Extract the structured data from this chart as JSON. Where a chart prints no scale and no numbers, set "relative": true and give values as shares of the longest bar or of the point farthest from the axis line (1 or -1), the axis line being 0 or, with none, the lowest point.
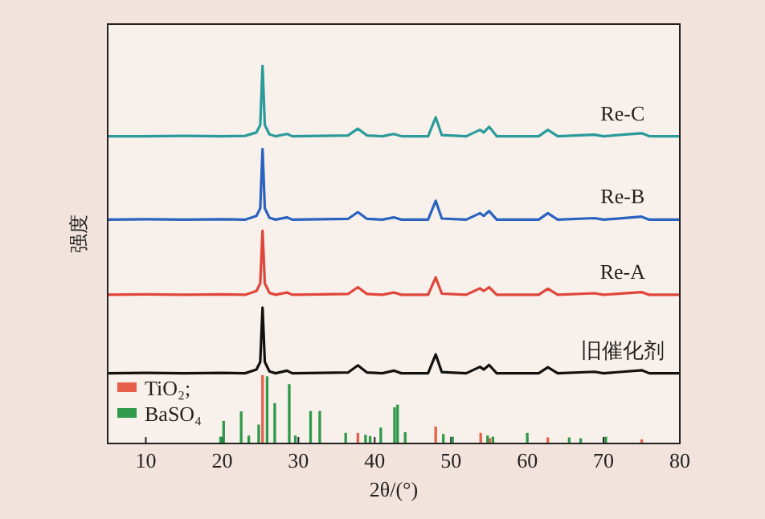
{
  "chart_data": {
    "type": "line",
    "xlabel": "2θ/(°)",
    "ylabel": "强度",
    "relative": true,
    "xlim": [
      5,
      80
    ],
    "xticks": [
      10,
      20,
      30,
      40,
      50,
      60,
      70,
      80
    ],
    "grid": false,
    "legend": "bottom left",
    "tick_labels": "x",
    "line_style": "solid",
    "series": [
      {
        "name": "Re-C",
        "color": "#2a9a9a",
        "x": [
          5,
          10,
          15,
          20,
          23,
          24.5,
          25.0,
          25.3,
          25.6,
          26.2,
          27,
          28.5,
          29.2,
          33,
          36.5,
          37.8,
          39,
          41,
          42.5,
          43.5,
          47,
          48.0,
          48.8,
          52,
          53.8,
          54.3,
          55.0,
          56,
          61.5,
          62.7,
          64,
          68.8,
          70,
          75,
          76,
          80
        ],
        "values": [
          0.814,
          0.814,
          0.815,
          0.814,
          0.815,
          0.824,
          0.844,
          1.0,
          0.844,
          0.819,
          0.814,
          0.82,
          0.814,
          0.815,
          0.816,
          0.834,
          0.816,
          0.814,
          0.82,
          0.814,
          0.814,
          0.864,
          0.817,
          0.814,
          0.831,
          0.824,
          0.839,
          0.814,
          0.814,
          0.831,
          0.814,
          0.818,
          0.814,
          0.822,
          0.814,
          0.814
        ]
      },
      {
        "name": "Re-B",
        "color": "#2a62c0",
        "x": [
          5,
          10,
          15,
          20,
          23,
          24.5,
          25.0,
          25.3,
          25.6,
          26.2,
          27,
          28.5,
          29.2,
          33,
          36.5,
          37.8,
          39,
          41,
          42.5,
          43.5,
          47,
          48.0,
          48.8,
          52,
          53.8,
          54.3,
          55.0,
          56,
          61.5,
          62.7,
          64,
          68.8,
          70,
          75,
          76,
          80
        ],
        "values": [
          0.593,
          0.594,
          0.593,
          0.594,
          0.593,
          0.603,
          0.623,
          0.78,
          0.623,
          0.598,
          0.593,
          0.599,
          0.593,
          0.594,
          0.595,
          0.613,
          0.595,
          0.593,
          0.599,
          0.593,
          0.593,
          0.643,
          0.596,
          0.593,
          0.61,
          0.603,
          0.616,
          0.593,
          0.593,
          0.61,
          0.593,
          0.597,
          0.593,
          0.601,
          0.593,
          0.593
        ]
      },
      {
        "name": "Re-A",
        "color": "#e0453a",
        "x": [
          5,
          10,
          15,
          20,
          23,
          24.5,
          25.0,
          25.3,
          25.6,
          26.2,
          27,
          28.5,
          29.2,
          33,
          36.5,
          37.8,
          39,
          41,
          42.5,
          43.5,
          47,
          48.0,
          48.8,
          52,
          53.8,
          54.3,
          55.0,
          56,
          61.5,
          62.7,
          64,
          68.8,
          70,
          75,
          76,
          80
        ],
        "values": [
          0.394,
          0.395,
          0.394,
          0.395,
          0.394,
          0.404,
          0.424,
          0.564,
          0.424,
          0.399,
          0.394,
          0.4,
          0.394,
          0.395,
          0.396,
          0.414,
          0.396,
          0.394,
          0.4,
          0.394,
          0.394,
          0.44,
          0.397,
          0.394,
          0.411,
          0.404,
          0.414,
          0.394,
          0.394,
          0.41,
          0.394,
          0.398,
          0.394,
          0.401,
          0.394,
          0.394
        ]
      },
      {
        "name": "旧催化剂",
        "color": "#111111",
        "x": [
          5,
          10,
          15,
          20,
          23,
          24.5,
          25.0,
          25.3,
          25.6,
          26.2,
          27,
          28.5,
          29.2,
          33,
          36.5,
          37.8,
          39,
          41,
          42.5,
          43.5,
          47,
          48.0,
          48.8,
          52,
          53.8,
          54.3,
          55.0,
          56,
          61.5,
          62.7,
          64,
          68.8,
          70,
          75,
          76,
          80
        ],
        "values": [
          0.186,
          0.187,
          0.186,
          0.187,
          0.186,
          0.196,
          0.216,
          0.36,
          0.216,
          0.191,
          0.186,
          0.193,
          0.186,
          0.187,
          0.188,
          0.207,
          0.188,
          0.186,
          0.193,
          0.186,
          0.186,
          0.236,
          0.189,
          0.186,
          0.203,
          0.196,
          0.208,
          0.186,
          0.186,
          0.202,
          0.186,
          0.19,
          0.186,
          0.194,
          0.186,
          0.186
        ]
      },
      {
        "name": "TiO₂;",
        "type": "bar",
        "color": "#e8604c",
        "x": [
          25.3,
          37.8,
          48.0,
          53.9,
          55.1,
          62.7,
          75.0
        ],
        "values": [
          0.181,
          0.028,
          0.045,
          0.028,
          0.014,
          0.016,
          0.011
        ]
      },
      {
        "name": "BaSO₄",
        "type": "bar",
        "color": "#2e9a4a",
        "x": [
          19.8,
          20.2,
          22.5,
          23.5,
          24.8,
          25.9,
          26.9,
          28.8,
          29.6,
          31.6,
          32.8,
          36.2,
          38.8,
          39.4,
          40.8,
          42.6,
          43.0,
          44.0,
          49.0,
          50.2,
          54.8,
          55.5,
          60.0,
          65.5,
          67.0,
          70.3
        ],
        "values": [
          0.018,
          0.06,
          0.085,
          0.021,
          0.05,
          0.178,
          0.107,
          0.157,
          0.021,
          0.086,
          0.086,
          0.028,
          0.023,
          0.02,
          0.042,
          0.096,
          0.103,
          0.03,
          0.025,
          0.018,
          0.021,
          0.018,
          0.028,
          0.016,
          0.014,
          0.018
        ]
      }
    ]
  }
}
